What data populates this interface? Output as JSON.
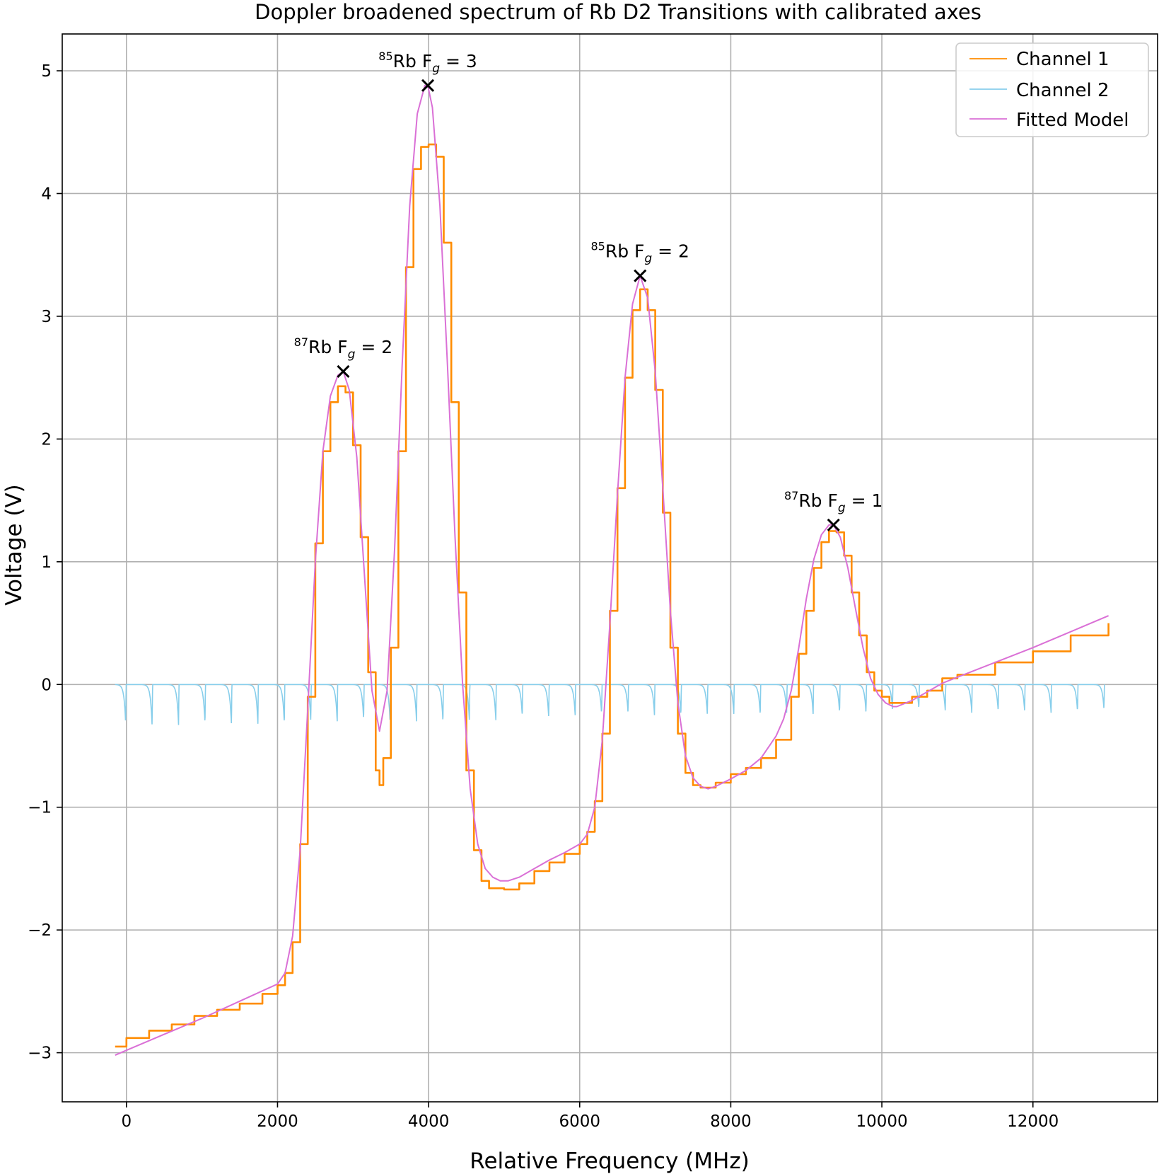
{
  "chart_data": {
    "type": "line",
    "title": "Doppler broadened spectrum of Rb D2 Transitions with calibrated axes",
    "xlabel": "Relative Frequency (MHz)",
    "ylabel": "Voltage (V)",
    "xlim": [
      -850,
      13650
    ],
    "ylim": [
      -3.4,
      5.3
    ],
    "x_ticks": [
      0,
      2000,
      4000,
      6000,
      8000,
      10000,
      12000
    ],
    "x_tick_labels": [
      "0",
      "2000",
      "4000",
      "6000",
      "8000",
      "10000",
      "12000"
    ],
    "y_ticks": [
      -3,
      -2,
      -1,
      0,
      1,
      2,
      3,
      4,
      5
    ],
    "y_tick_labels": [
      "−3",
      "−2",
      "−1",
      "0",
      "1",
      "2",
      "3",
      "4",
      "5"
    ],
    "grid": true,
    "legend_position": "top-right",
    "colors": {
      "channel1": "#ff8c00",
      "channel2": "#87ceeb",
      "fitted": "#da70d6",
      "marker": "#000000"
    },
    "series": [
      {
        "name": "Channel 1",
        "color": "#ff8c00",
        "x": [
          -150,
          0,
          300,
          600,
          900,
          1200,
          1500,
          1800,
          2000,
          2100,
          2200,
          2300,
          2400,
          2500,
          2600,
          2700,
          2800,
          2900,
          3000,
          3100,
          3200,
          3300,
          3350,
          3400,
          3500,
          3600,
          3700,
          3800,
          3900,
          4000,
          4100,
          4200,
          4300,
          4400,
          4500,
          4600,
          4700,
          4800,
          5000,
          5200,
          5400,
          5600,
          5800,
          6000,
          6100,
          6200,
          6300,
          6400,
          6500,
          6600,
          6700,
          6800,
          6900,
          7000,
          7100,
          7200,
          7300,
          7400,
          7500,
          7600,
          7700,
          7800,
          8000,
          8200,
          8400,
          8600,
          8800,
          8900,
          9000,
          9100,
          9200,
          9300,
          9400,
          9500,
          9600,
          9700,
          9800,
          9900,
          10000,
          10100,
          10200,
          10400,
          10600,
          10800,
          11000,
          11500,
          12000,
          12500,
          13000
        ],
        "values": [
          -2.95,
          -2.88,
          -2.82,
          -2.77,
          -2.7,
          -2.65,
          -2.6,
          -2.52,
          -2.45,
          -2.35,
          -2.1,
          -1.3,
          -0.1,
          1.15,
          1.9,
          2.3,
          2.43,
          2.38,
          1.95,
          1.2,
          0.1,
          -0.7,
          -0.82,
          -0.6,
          0.3,
          1.9,
          3.4,
          4.2,
          4.38,
          4.4,
          4.3,
          3.6,
          2.3,
          0.75,
          -0.7,
          -1.35,
          -1.6,
          -1.66,
          -1.67,
          -1.62,
          -1.52,
          -1.45,
          -1.38,
          -1.3,
          -1.2,
          -0.95,
          -0.4,
          0.6,
          1.6,
          2.5,
          3.05,
          3.22,
          3.05,
          2.4,
          1.4,
          0.3,
          -0.4,
          -0.72,
          -0.82,
          -0.84,
          -0.84,
          -0.8,
          -0.73,
          -0.68,
          -0.6,
          -0.45,
          -0.1,
          0.25,
          0.6,
          0.95,
          1.16,
          1.25,
          1.24,
          1.05,
          0.75,
          0.4,
          0.1,
          -0.05,
          -0.1,
          -0.15,
          -0.15,
          -0.1,
          -0.05,
          0.05,
          0.08,
          0.18,
          0.27,
          0.4,
          0.5
        ]
      },
      {
        "name": "Channel 2",
        "color": "#87ceeb",
        "baseline": 0,
        "dip_x": [
          -10,
          340,
          690,
          1040,
          1390,
          1740,
          2090,
          2440,
          2790,
          3140,
          3490,
          3840,
          4190,
          4540,
          4890,
          5240,
          5590,
          5940,
          6290,
          6640,
          6990,
          7340,
          7690,
          8040,
          8390,
          8740,
          9090,
          9440,
          9790,
          10140,
          10490,
          10840,
          11190,
          11540,
          11890,
          12240,
          12590,
          12940
        ],
        "dip_depth": [
          0.32,
          0.34,
          0.33,
          0.32,
          0.33,
          0.32,
          0.32,
          0.3,
          0.3,
          0.29,
          0.3,
          0.3,
          0.31,
          0.3,
          0.29,
          0.26,
          0.27,
          0.25,
          0.24,
          0.23,
          0.25,
          0.25,
          0.25,
          0.24,
          0.25,
          0.24,
          0.24,
          0.23,
          0.23,
          0.2,
          0.2,
          0.22,
          0.23,
          0.22,
          0.22,
          0.23,
          0.22,
          0.2
        ]
      },
      {
        "name": "Fitted Model",
        "color": "#da70d6",
        "x": [
          -150,
          0,
          500,
          1000,
          1500,
          2000,
          2100,
          2200,
          2300,
          2400,
          2500,
          2600,
          2700,
          2800,
          2870,
          2950,
          3050,
          3150,
          3250,
          3350,
          3450,
          3550,
          3650,
          3750,
          3850,
          3950,
          3990,
          4050,
          4150,
          4250,
          4350,
          4450,
          4550,
          4650,
          4750,
          4850,
          4950,
          5050,
          5200,
          5400,
          5600,
          5800,
          6000,
          6100,
          6200,
          6300,
          6400,
          6500,
          6600,
          6700,
          6800,
          6900,
          7000,
          7100,
          7200,
          7300,
          7400,
          7500,
          7600,
          7700,
          7800,
          8000,
          8200,
          8400,
          8600,
          8700,
          8800,
          8900,
          9000,
          9100,
          9200,
          9300,
          9360,
          9450,
          9550,
          9650,
          9750,
          9850,
          9950,
          10050,
          10150,
          10200,
          10400,
          10600,
          10800,
          11000,
          11500,
          12000,
          12500,
          13000
        ],
        "values": [
          -3.02,
          -2.98,
          -2.85,
          -2.72,
          -2.58,
          -2.44,
          -2.35,
          -2.05,
          -1.35,
          -0.2,
          1.0,
          1.9,
          2.35,
          2.52,
          2.55,
          2.4,
          1.85,
          0.9,
          -0.05,
          -0.38,
          -0.05,
          1.1,
          2.6,
          3.9,
          4.65,
          4.88,
          4.88,
          4.7,
          3.9,
          2.6,
          1.2,
          0.0,
          -0.85,
          -1.3,
          -1.5,
          -1.57,
          -1.6,
          -1.6,
          -1.57,
          -1.5,
          -1.43,
          -1.37,
          -1.3,
          -1.22,
          -1.0,
          -0.45,
          0.5,
          1.55,
          2.5,
          3.1,
          3.33,
          3.15,
          2.55,
          1.6,
          0.6,
          -0.15,
          -0.58,
          -0.76,
          -0.83,
          -0.85,
          -0.83,
          -0.77,
          -0.7,
          -0.6,
          -0.42,
          -0.28,
          -0.05,
          0.3,
          0.7,
          1.02,
          1.22,
          1.3,
          1.3,
          1.2,
          0.95,
          0.62,
          0.3,
          0.05,
          -0.08,
          -0.15,
          -0.18,
          -0.18,
          -0.13,
          -0.06,
          0.01,
          0.06,
          0.18,
          0.3,
          0.43,
          0.56
        ]
      }
    ],
    "peaks": [
      {
        "x": 2870,
        "y": 2.55,
        "label_super": "87",
        "label_mid": "Rb F",
        "label_sub": "g",
        "label_end": " = 2"
      },
      {
        "x": 3990,
        "y": 4.88,
        "label_super": "85",
        "label_mid": "Rb F",
        "label_sub": "g",
        "label_end": " = 3"
      },
      {
        "x": 6800,
        "y": 3.33,
        "label_super": "85",
        "label_mid": "Rb F",
        "label_sub": "g",
        "label_end": " = 2"
      },
      {
        "x": 9360,
        "y": 1.3,
        "label_super": "87",
        "label_mid": "Rb F",
        "label_sub": "g",
        "label_end": " = 1"
      }
    ]
  }
}
